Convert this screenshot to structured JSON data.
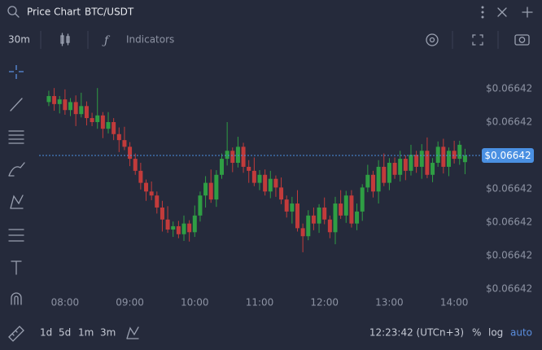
{
  "header": {
    "title": "Price Chart",
    "symbol": "BTC/USDT"
  },
  "toolbar": {
    "interval": "30m",
    "indicators": "Indicators"
  },
  "footer": {
    "ranges": [
      "1d",
      "5d",
      "1m",
      "3m"
    ],
    "clock": "12:23:42 (UTCn+3)",
    "percent": "%",
    "log": "log",
    "auto": "auto"
  },
  "chart_data": {
    "type": "candlestick",
    "up_color": "#2f9e44",
    "down_color": "#c23b3b",
    "x": [
      465,
      470,
      475,
      480,
      485,
      490,
      495,
      500,
      505,
      510,
      515,
      520,
      525,
      530,
      535,
      540,
      545,
      550,
      555,
      560,
      565,
      570,
      575,
      580,
      585,
      590,
      595,
      600,
      605,
      610,
      615,
      620,
      625,
      630,
      635,
      640,
      645,
      650,
      655,
      660,
      665,
      670,
      675,
      680,
      685,
      690,
      695,
      700,
      705,
      710,
      715,
      720,
      725,
      730,
      735,
      740,
      745,
      750,
      755,
      760,
      765,
      770,
      775,
      780,
      785,
      790,
      795,
      800,
      805,
      810,
      815,
      820,
      825,
      830,
      835,
      840,
      845,
      850
    ],
    "open": [
      0.0664198,
      0.06641989,
      0.06641977,
      0.06641984,
      0.06641968,
      0.0664198,
      0.06641962,
      0.06641974,
      0.06641956,
      0.0664195,
      0.0664196,
      0.0664194,
      0.0664195,
      0.06641932,
      0.06641923,
      0.06641913,
      0.06641895,
      0.06641877,
      0.06641859,
      0.06641846,
      0.0664184,
      0.06641822,
      0.06641804,
      0.06641789,
      0.06641794,
      0.06641782,
      0.06641798,
      0.06641785,
      0.0664181,
      0.0664184,
      0.06641859,
      0.06641834,
      0.06641871,
      0.06641895,
      0.06641907,
      0.06641889,
      0.06641913,
      0.06641883,
      0.06641877,
      0.06641859,
      0.06641871,
      0.06641846,
      0.06641865,
      0.06641852,
      0.06641834,
      0.06641816,
      0.06641828,
      0.06641791,
      0.06641779,
      0.0664181,
      0.06641798,
      0.06641822,
      0.06641804,
      0.06641785,
      0.06641828,
      0.0664181,
      0.0664184,
      0.06641798,
      0.06641816,
      0.06641852,
      0.06641871,
      0.06641846,
      0.06641883,
      0.06641859,
      0.06641889,
      0.06641871,
      0.06641895,
      0.06641877,
      0.06641901,
      0.06641883,
      0.06641907,
      0.06641871,
      0.06641889,
      0.06641913,
      0.06641883,
      0.06641907,
      0.06641895,
      0.0664189
    ],
    "high": [
      0.06641997,
      0.06642001,
      0.06641989,
      0.06641999,
      0.06641986,
      0.0664199,
      0.06641994,
      0.06641981,
      0.06641964,
      0.06642001,
      0.06641965,
      0.06641965,
      0.06641956,
      0.06641942,
      0.06641943,
      0.0664192,
      0.06641903,
      0.06641889,
      0.06641864,
      0.06641861,
      0.06641846,
      0.06641832,
      0.06641824,
      0.06641801,
      0.06641802,
      0.0664181,
      0.06641803,
      0.06641825,
      0.06641846,
      0.06641869,
      0.06641879,
      0.06641878,
      0.06641903,
      0.0664195,
      0.06641912,
      0.06641928,
      0.06641919,
      0.06641893,
      0.06641897,
      0.06641878,
      0.06641879,
      0.06641877,
      0.0664187,
      0.06641867,
      0.0664184,
      0.06641838,
      0.06641848,
      0.06641798,
      0.06641818,
      0.06641822,
      0.06641827,
      0.06641837,
      0.0664181,
      0.06641838,
      0.06641848,
      0.06641847,
      0.06641848,
      0.06641828,
      0.06641857,
      0.06641886,
      0.06641877,
      0.06641893,
      0.06641903,
      0.06641896,
      0.06641897,
      0.06641907,
      0.066419,
      0.06641916,
      0.06641907,
      0.06641917,
      0.06641927,
      0.06641896,
      0.06641921,
      0.06641925,
      0.06641912,
      0.06641922,
      0.06641922,
      0.0664191
    ],
    "low": [
      0.06641974,
      0.06641967,
      0.06641963,
      0.06641961,
      0.06641959,
      0.06641944,
      0.06641957,
      0.06641945,
      0.06641944,
      0.0664194,
      0.06641926,
      0.06641933,
      0.06641923,
      0.06641905,
      0.06641908,
      0.06641884,
      0.06641871,
      0.06641849,
      0.06641832,
      0.06641833,
      0.06641813,
      0.06641786,
      0.06641784,
      0.06641778,
      0.06641776,
      0.06641772,
      0.06641771,
      0.06641778,
      0.06641801,
      0.06641822,
      0.06641829,
      0.06641823,
      0.06641865,
      0.06641885,
      0.06641875,
      0.06641882,
      0.06641874,
      0.06641859,
      0.06641854,
      0.06641848,
      0.0664184,
      0.06641836,
      0.06641838,
      0.06641827,
      0.06641807,
      0.06641798,
      0.06641786,
      0.06641755,
      0.06641773,
      0.06641788,
      0.06641784,
      0.06641797,
      0.06641776,
      0.06641767,
      0.06641805,
      0.06641799,
      0.06641792,
      0.06641788,
      0.06641802,
      0.06641845,
      0.06641837,
      0.06641828,
      0.06641854,
      0.06641848,
      0.06641865,
      0.06641861,
      0.06641863,
      0.0664187,
      0.06641874,
      0.06641865,
      0.06641866,
      0.0664186,
      0.06641883,
      0.06641873,
      0.06641869,
      0.06641888,
      0.06641886,
      0.06641872
    ],
    "close": [
      0.06641989,
      0.06641977,
      0.06641984,
      0.06641968,
      0.0664198,
      0.06641962,
      0.06641974,
      0.06641956,
      0.0664195,
      0.0664196,
      0.0664194,
      0.0664195,
      0.06641932,
      0.06641923,
      0.06641913,
      0.06641895,
      0.06641877,
      0.06641859,
      0.06641846,
      0.0664184,
      0.06641822,
      0.06641804,
      0.06641789,
      0.06641794,
      0.06641782,
      0.06641798,
      0.06641785,
      0.0664181,
      0.0664184,
      0.06641859,
      0.06641834,
      0.06641871,
      0.06641895,
      0.06641907,
      0.06641889,
      0.06641913,
      0.06641883,
      0.06641877,
      0.06641859,
      0.06641871,
      0.06641846,
      0.06641865,
      0.06641852,
      0.06641834,
      0.06641816,
      0.06641828,
      0.06641791,
      0.06641779,
      0.0664181,
      0.06641798,
      0.06641822,
      0.06641804,
      0.06641785,
      0.06641828,
      0.0664181,
      0.0664184,
      0.06641798,
      0.06641816,
      0.06641852,
      0.06641871,
      0.06641846,
      0.06641883,
      0.06641859,
      0.06641889,
      0.06641871,
      0.06641895,
      0.06641877,
      0.06641901,
      0.06641883,
      0.06641907,
      0.06641871,
      0.06641889,
      0.06641913,
      0.06641883,
      0.06641907,
      0.06641895,
      0.06641916,
      0.066419
    ],
    "xlim": [
      456,
      864
    ],
    "xticks": [
      {
        "value": 480,
        "label": "08:00"
      },
      {
        "value": 540,
        "label": "09:00"
      },
      {
        "value": 600,
        "label": "10:00"
      },
      {
        "value": 660,
        "label": "11:00"
      },
      {
        "value": 720,
        "label": "12:00"
      },
      {
        "value": 780,
        "label": "13:00"
      },
      {
        "value": 840,
        "label": "14:00"
      }
    ],
    "ylim": [
      0.0664169,
      0.0664202
    ],
    "yticks": [
      {
        "value": 0.06642,
        "label": "$0.06642"
      },
      {
        "value": 0.0664195,
        "label": "$0.06642"
      },
      {
        "value": 0.0664185,
        "label": "$0.06642"
      },
      {
        "value": 0.066418,
        "label": "$0.06642"
      },
      {
        "value": 0.0664175,
        "label": "$0.06642"
      },
      {
        "value": 0.066417,
        "label": "$0.06642"
      }
    ],
    "current_price": {
      "value": 0.066419,
      "label": "$0.06642",
      "color": "#4a90e2"
    },
    "grid": false
  }
}
